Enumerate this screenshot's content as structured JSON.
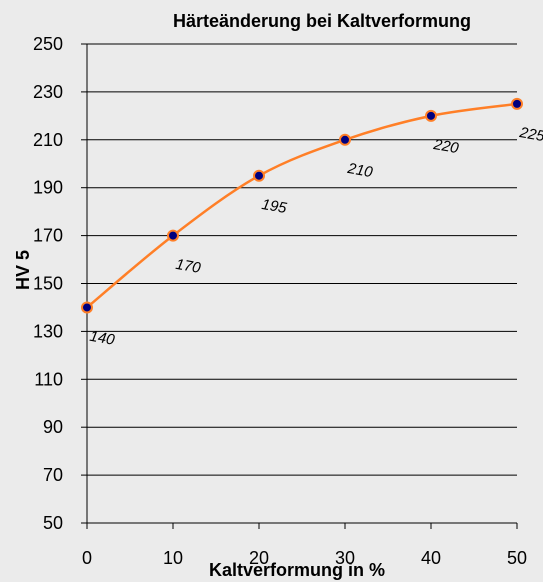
{
  "chart_data": {
    "type": "line",
    "title": "Härteänderung bei Kaltverformung",
    "xlabel": "Kaltverformung in %",
    "ylabel": "HV 5",
    "x": [
      0,
      10,
      20,
      30,
      40,
      50
    ],
    "series": [
      {
        "values": [
          140,
          170,
          195,
          210,
          220,
          225
        ]
      }
    ],
    "data_labels": [
      "140",
      "170",
      "195",
      "210",
      "220",
      "225"
    ],
    "xlim": [
      0,
      50
    ],
    "ylim": [
      50,
      250
    ],
    "xticks": [
      0,
      10,
      20,
      30,
      40,
      50
    ],
    "yticks": [
      50,
      70,
      90,
      110,
      130,
      150,
      170,
      190,
      210,
      230,
      250
    ],
    "grid": "horizontal",
    "legend": "none",
    "smooth": true,
    "colors": {
      "background": "#ebebeb",
      "line": "#ff7f27",
      "marker_fill": "#00007f",
      "marker_edge": "#ff7f27",
      "grid": "#000000"
    }
  }
}
